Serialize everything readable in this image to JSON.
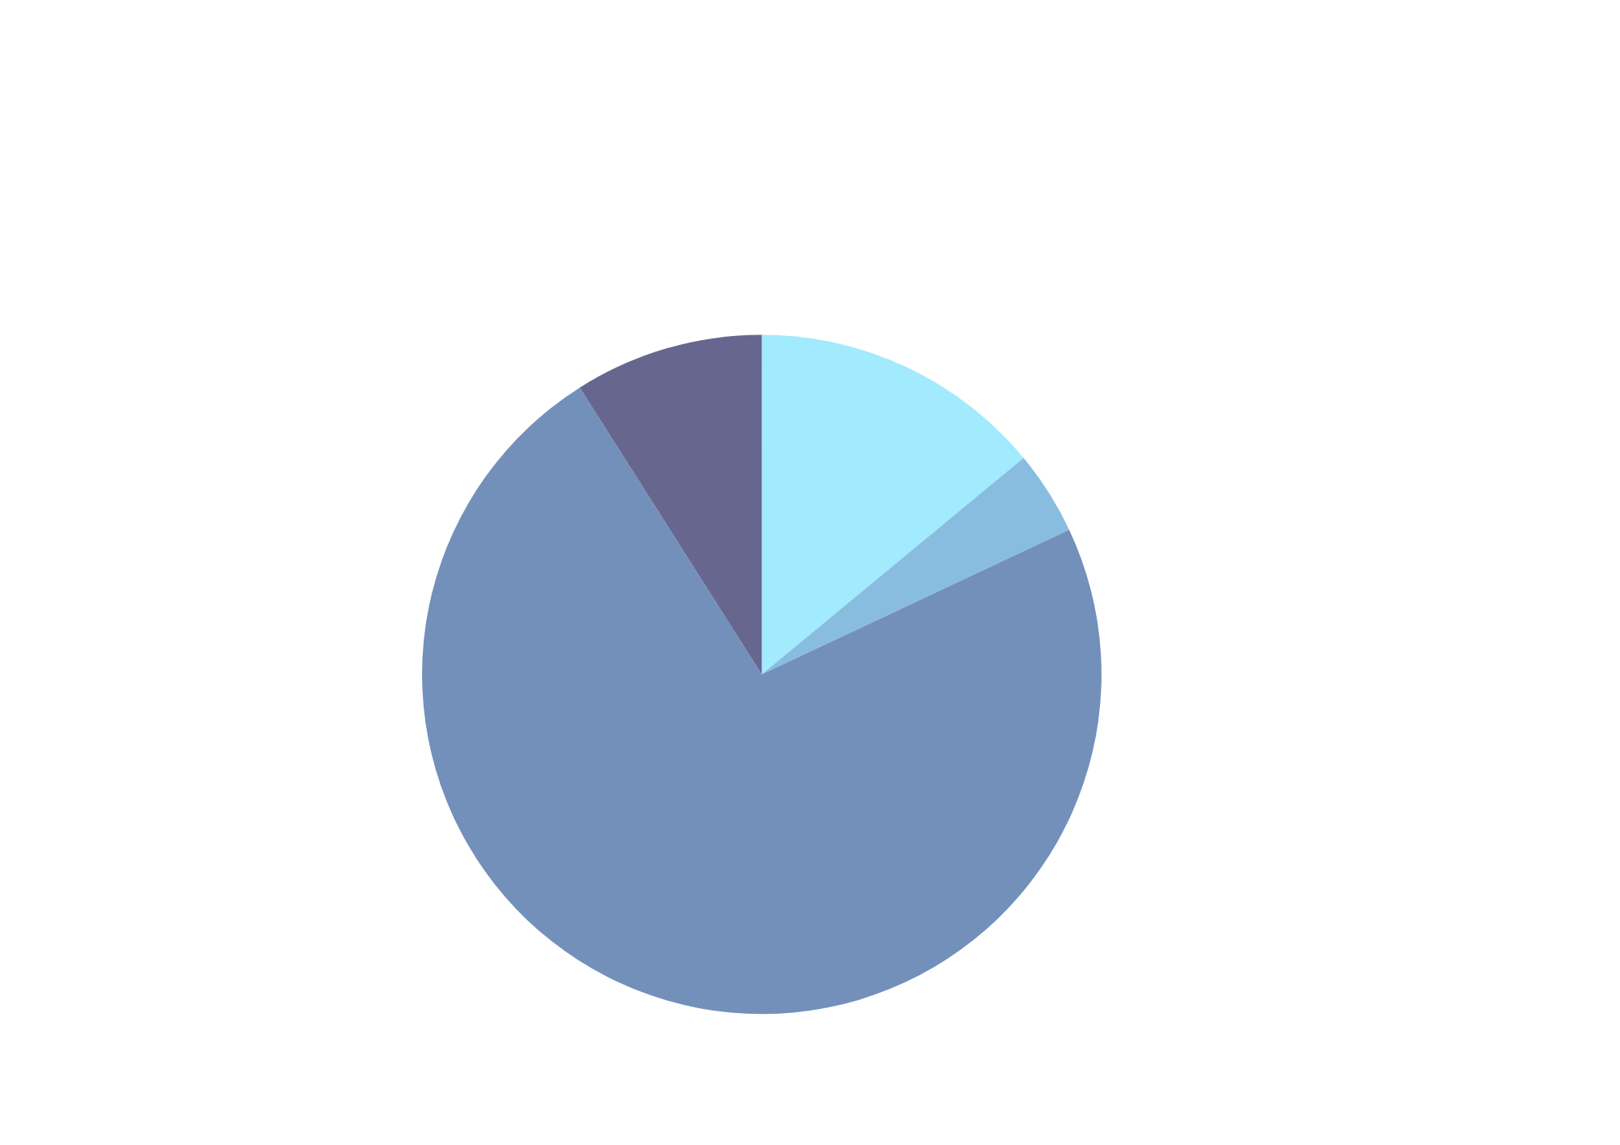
{
  "chart_data": {
    "type": "pie",
    "categories": [
      null,
      null,
      null,
      null
    ],
    "values": [
      14,
      4,
      73,
      9
    ],
    "colors": [
      "#a2eafd",
      "#88bde0",
      "#7390bb",
      "#66668f"
    ]
  }
}
